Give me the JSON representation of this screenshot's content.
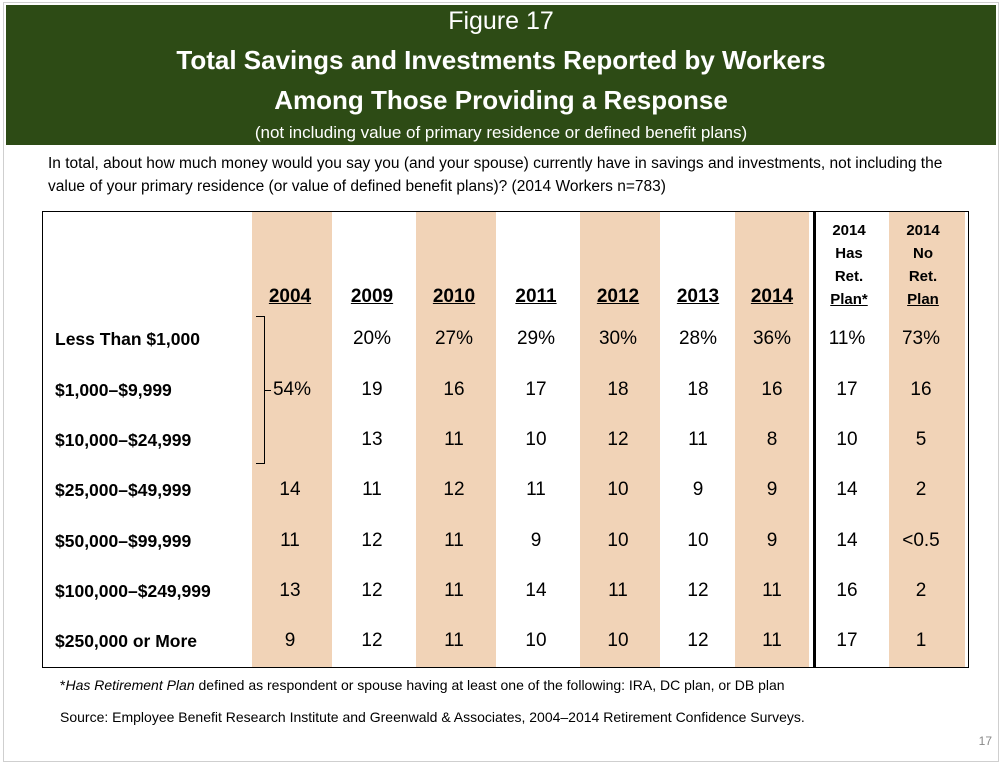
{
  "header": {
    "figure": "Figure 17",
    "title_line1": "Total Savings and Investments Reported by Workers",
    "title_line2": "Among Those Providing a Response",
    "subtitle": "(not including value of primary residence or defined benefit plans)"
  },
  "question": "In total, about how much money would you say you (and your spouse) currently have in savings and investments, not including the value of your primary residence (or value of defined benefit plans)? (2014 Workers n=783)",
  "colors": {
    "header_bg": "#2d4b15",
    "shade": "#f1d3b7"
  },
  "chart_data": {
    "type": "table",
    "columns": [
      "2004",
      "2009",
      "2010",
      "2011",
      "2012",
      "2013",
      "2014"
    ],
    "extra_columns": [
      {
        "line1": "2014",
        "line2": "Has",
        "line3": "Ret.",
        "line4": "Plan*"
      },
      {
        "line1": "2014",
        "line2": "No",
        "line3": "Ret.",
        "line4": "Plan"
      }
    ],
    "rows": [
      {
        "label": "Less Than $1,000",
        "values": [
          "",
          "20%",
          "27%",
          "29%",
          "30%",
          "28%",
          "36%",
          "11%",
          "73%"
        ]
      },
      {
        "label": "$1,000–$9,999",
        "values": [
          "54%",
          "19",
          "16",
          "17",
          "18",
          "18",
          "16",
          "17",
          "16"
        ]
      },
      {
        "label": "$10,000–$24,999",
        "values": [
          "",
          "13",
          "11",
          "10",
          "12",
          "11",
          "8",
          "10",
          "5"
        ]
      },
      {
        "label": "$25,000–$49,999",
        "values": [
          "14",
          "11",
          "12",
          "11",
          "10",
          "9",
          "9",
          "14",
          "2"
        ]
      },
      {
        "label": "$50,000–$99,999",
        "values": [
          "11",
          "12",
          "11",
          "9",
          "10",
          "10",
          "9",
          "14",
          "<0.5"
        ]
      },
      {
        "label": "$100,000–$249,999",
        "values": [
          "13",
          "12",
          "11",
          "14",
          "11",
          "12",
          "11",
          "16",
          "2"
        ]
      },
      {
        "label": "$250,000 or More",
        "values": [
          "9",
          "12",
          "11",
          "10",
          "10",
          "12",
          "11",
          "17",
          "1"
        ]
      }
    ]
  },
  "footnote": {
    "star": "*",
    "italic": "Has Retirement Plan",
    "rest": " defined as respondent or spouse having at least one of the following: IRA, DC plan, or DB plan"
  },
  "source": "Source:  Employee Benefit Research Institute and Greenwald & Associates, 2004–2014 Retirement Confidence Surveys.",
  "page_number": "17"
}
